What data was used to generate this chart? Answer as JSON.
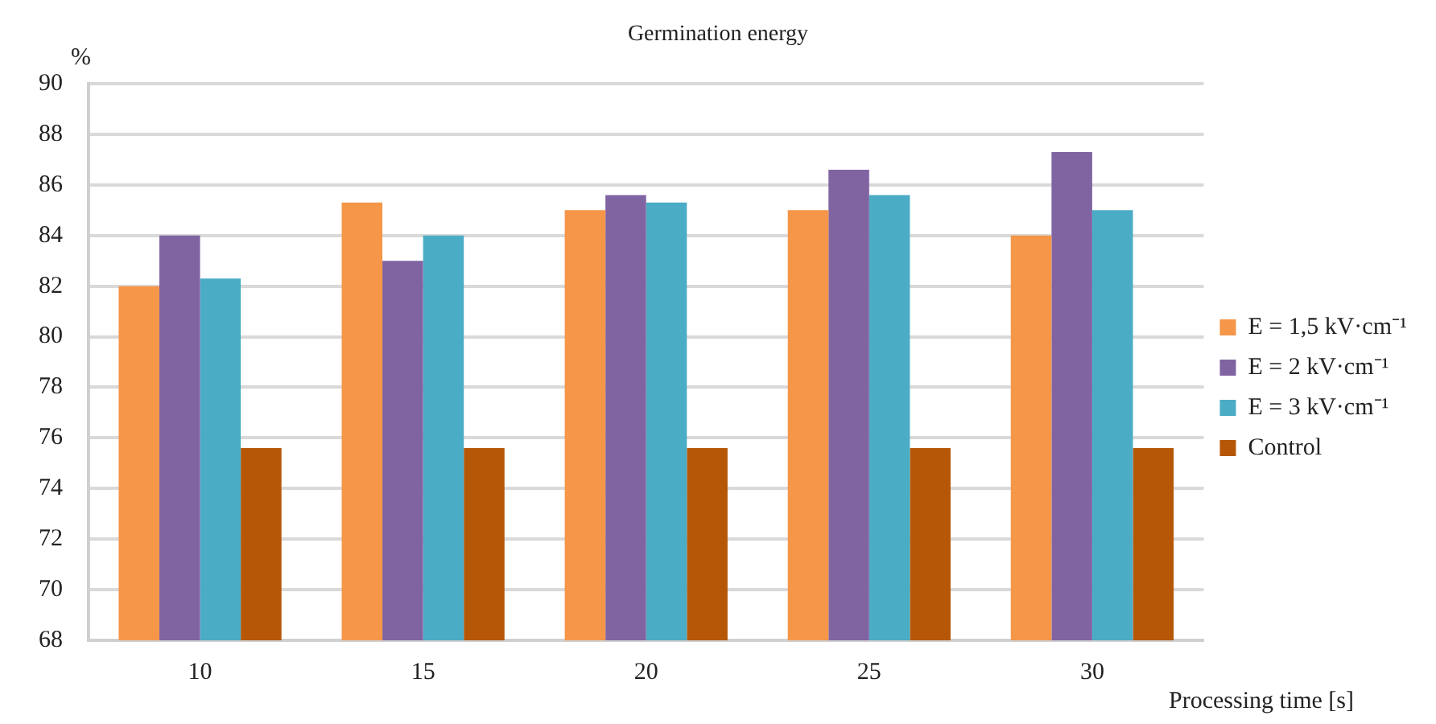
{
  "chart_data": {
    "type": "bar",
    "title": "Germination  energy",
    "xlabel": "Processing time [s]",
    "ylabel": "%",
    "categories": [
      "10",
      "15",
      "20",
      "25",
      "30"
    ],
    "series": [
      {
        "name": "E = 1,5 kV·cm⁻¹",
        "color": "#f59649",
        "values": [
          82,
          85.3,
          85,
          85,
          84
        ]
      },
      {
        "name": "E = 2 kV·cm⁻¹",
        "color": "#8064a2",
        "values": [
          84,
          83,
          85.6,
          86.6,
          87.3
        ]
      },
      {
        "name": "E = 3 kV·cm⁻¹",
        "color": "#4bacc6",
        "values": [
          82.3,
          84,
          85.3,
          85.6,
          85
        ]
      },
      {
        "name": "Control",
        "color": "#b65708",
        "values": [
          75.6,
          75.6,
          75.6,
          75.6,
          75.6
        ]
      }
    ],
    "ylim": [
      68,
      90
    ],
    "yticks": [
      68,
      70,
      72,
      74,
      76,
      78,
      80,
      82,
      84,
      86,
      88,
      90
    ],
    "grid": "y",
    "legend": "right"
  }
}
